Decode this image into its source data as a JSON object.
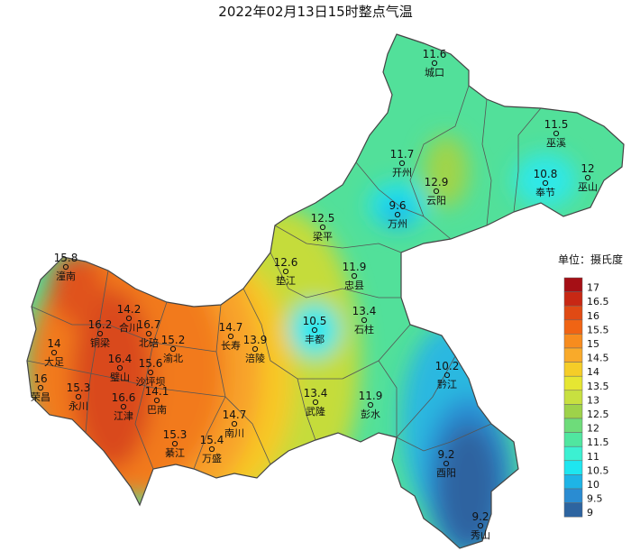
{
  "title": "2022年02月13日15时整点气温",
  "stations": [
    {
      "name": "城口",
      "value": 11.6
    },
    {
      "name": "巫溪",
      "value": 11.5
    },
    {
      "name": "巫山",
      "value": 12
    },
    {
      "name": "开州",
      "value": 11.7
    },
    {
      "name": "云阳",
      "value": 12.9
    },
    {
      "name": "奉节",
      "value": 10.8
    },
    {
      "name": "万州",
      "value": 9.6
    },
    {
      "name": "梁平",
      "value": 12.5
    },
    {
      "name": "垫江",
      "value": 12.6
    },
    {
      "name": "忠县",
      "value": 11.9
    },
    {
      "name": "石柱",
      "value": 13.4
    },
    {
      "name": "丰都",
      "value": 10.5
    },
    {
      "name": "潼南",
      "value": 15.8
    },
    {
      "name": "合川",
      "value": 14.2
    },
    {
      "name": "铜梁",
      "value": 16.2
    },
    {
      "name": "北碚",
      "value": 16.7
    },
    {
      "name": "渝北",
      "value": 15.2
    },
    {
      "name": "大足",
      "value": 14
    },
    {
      "name": "璧山",
      "value": 16.4
    },
    {
      "name": "沙坪坝",
      "value": 15.6
    },
    {
      "name": "长寿",
      "value": 14.7
    },
    {
      "name": "涪陵",
      "value": 13.9
    },
    {
      "name": "荣昌",
      "value": 16
    },
    {
      "name": "永川",
      "value": 15.3
    },
    {
      "name": "巴南",
      "value": 14.1
    },
    {
      "name": "江津",
      "value": 16.6
    },
    {
      "name": "黔江",
      "value": 10.2
    },
    {
      "name": "武隆",
      "value": 13.4
    },
    {
      "name": "彭水",
      "value": 11.9
    },
    {
      "name": "南川",
      "value": 14.7
    },
    {
      "name": "綦江",
      "value": 15.3
    },
    {
      "name": "万盛",
      "value": 15.4
    },
    {
      "name": "酉阳",
      "value": 9.2
    },
    {
      "name": "秀山",
      "value": 9.2
    }
  ],
  "legend": {
    "title": "单位：摄氏度",
    "items": [
      {
        "value": 17,
        "color": "#a50f15"
      },
      {
        "value": 16.5,
        "color": "#c82814"
      },
      {
        "value": 16,
        "color": "#e04a14"
      },
      {
        "value": 15.5,
        "color": "#f06414"
      },
      {
        "value": 15,
        "color": "#f78c1e"
      },
      {
        "value": 14.5,
        "color": "#f9aa2a"
      },
      {
        "value": 14,
        "color": "#f5cd28"
      },
      {
        "value": 13.5,
        "color": "#e6e632"
      },
      {
        "value": 13,
        "color": "#c8e040"
      },
      {
        "value": 12.5,
        "color": "#9ed24a"
      },
      {
        "value": 12,
        "color": "#6edc7a"
      },
      {
        "value": 11.5,
        "color": "#50e6a0"
      },
      {
        "value": 11,
        "color": "#3cf0d2"
      },
      {
        "value": 10.5,
        "color": "#1ee6f0"
      },
      {
        "value": 10,
        "color": "#1eb4e6"
      },
      {
        "value": 9.5,
        "color": "#2a8cd2"
      },
      {
        "value": 9,
        "color": "#2d64a0"
      }
    ]
  }
}
